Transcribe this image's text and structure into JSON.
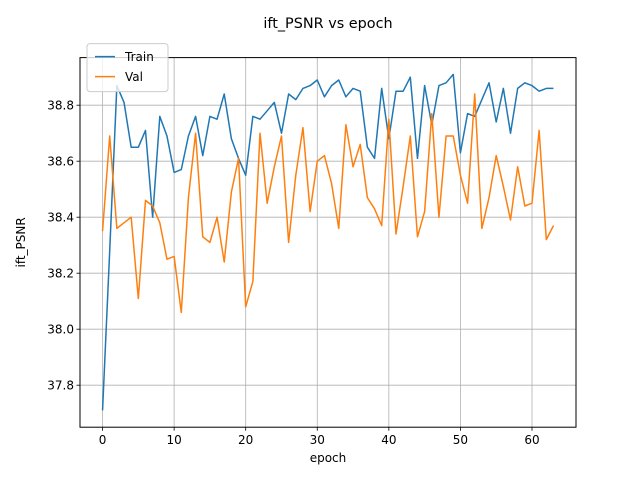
{
  "chart_data": {
    "type": "line",
    "title": "ift_PSNR vs epoch",
    "xlabel": "epoch",
    "ylabel": "ift_PSNR",
    "xlim": [
      -3.15,
      66.15
    ],
    "ylim": [
      37.65,
      38.97
    ],
    "xticks": [
      0,
      10,
      20,
      30,
      40,
      50,
      60
    ],
    "yticks": [
      37.8,
      38.0,
      38.2,
      38.4,
      38.6,
      38.8
    ],
    "grid": true,
    "legend": "top-left",
    "x": [
      0,
      1,
      2,
      3,
      4,
      5,
      6,
      7,
      8,
      9,
      10,
      11,
      12,
      13,
      14,
      15,
      16,
      17,
      18,
      19,
      20,
      21,
      22,
      23,
      24,
      25,
      26,
      27,
      28,
      29,
      30,
      31,
      32,
      33,
      34,
      35,
      36,
      37,
      38,
      39,
      40,
      41,
      42,
      43,
      44,
      45,
      46,
      47,
      48,
      49,
      50,
      51,
      52,
      53,
      54,
      55,
      56,
      57,
      58,
      59,
      60,
      61,
      62,
      63
    ],
    "series": [
      {
        "name": "Train",
        "color": "#1f77b4",
        "values": [
          37.71,
          38.28,
          38.87,
          38.81,
          38.65,
          38.65,
          38.71,
          38.4,
          38.76,
          38.69,
          38.56,
          38.57,
          38.69,
          38.76,
          38.62,
          38.76,
          38.75,
          38.84,
          38.68,
          38.61,
          38.55,
          38.76,
          38.75,
          38.78,
          38.81,
          38.7,
          38.84,
          38.82,
          38.86,
          38.87,
          38.89,
          38.83,
          38.87,
          38.89,
          38.83,
          38.86,
          38.85,
          38.65,
          38.61,
          38.86,
          38.68,
          38.85,
          38.85,
          38.9,
          38.61,
          38.87,
          38.73,
          38.87,
          38.88,
          38.91,
          38.63,
          38.77,
          38.76,
          38.82,
          38.88,
          38.74,
          38.86,
          38.7,
          38.86,
          38.88,
          38.87,
          38.85,
          38.86,
          38.86
        ]
      },
      {
        "name": "Val",
        "color": "#ff7f0e",
        "values": [
          38.35,
          38.69,
          38.36,
          38.38,
          38.4,
          38.11,
          38.46,
          38.44,
          38.38,
          38.25,
          38.26,
          38.06,
          38.47,
          38.7,
          38.33,
          38.31,
          38.4,
          38.24,
          38.49,
          38.61,
          38.08,
          38.17,
          38.7,
          38.45,
          38.58,
          38.69,
          38.31,
          38.55,
          38.72,
          38.42,
          38.6,
          38.62,
          38.52,
          38.36,
          38.73,
          38.58,
          38.66,
          38.47,
          38.43,
          38.37,
          38.75,
          38.34,
          38.51,
          38.69,
          38.33,
          38.42,
          38.77,
          38.4,
          38.69,
          38.69,
          38.55,
          38.45,
          38.84,
          38.36,
          38.47,
          38.62,
          38.51,
          38.39,
          38.58,
          38.44,
          38.45,
          38.71,
          38.32,
          38.37
        ]
      }
    ]
  }
}
